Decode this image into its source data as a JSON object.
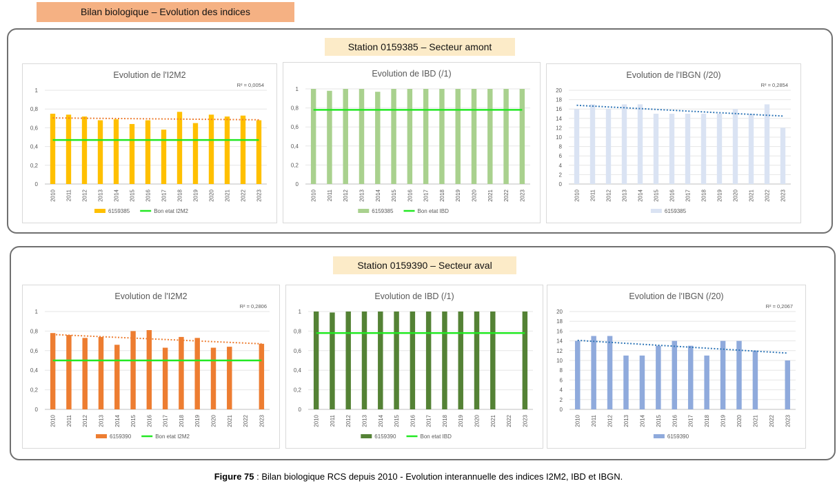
{
  "header": {
    "title": "Bilan biologique – Evolution des indices"
  },
  "stations": [
    {
      "label": "Station 0159385 – Secteur amont"
    },
    {
      "label": "Station 0159390 – Secteur aval"
    }
  ],
  "caption": {
    "prefix": "Figure 75",
    "text": " : Bilan biologique RCS depuis 2010 - Evolution interannuelle des indices I2M2, IBD et IBGN."
  },
  "colors": {
    "green_line": "#22e822",
    "i2m2_amont": "#ffc000",
    "ibd_amont": "#a9d18e",
    "ibgn_amont": "#dae3f3",
    "i2m2_aval": "#ed7d31",
    "ibd_aval": "#548235",
    "ibgn_aval": "#8faadc"
  },
  "chart_data": [
    {
      "type": "bar",
      "title": "Evolution de l'I2M2",
      "r2": "R² = 0,0054",
      "categories": [
        "2010",
        "2011",
        "2012",
        "2013",
        "2014",
        "2015",
        "2016",
        "2017",
        "2018",
        "2019",
        "2020",
        "2021",
        "2022",
        "2023"
      ],
      "ylim": [
        0,
        1
      ],
      "yticks": [
        "0",
        "0,2",
        "0,4",
        "0,6",
        "0,8",
        "1"
      ],
      "ytick_values": [
        0,
        0.2,
        0.4,
        0.6,
        0.8,
        1
      ],
      "series": [
        {
          "name": "6159385",
          "values": [
            0.75,
            0.74,
            0.72,
            0.68,
            0.69,
            0.64,
            0.68,
            0.58,
            0.77,
            0.65,
            0.74,
            0.72,
            0.73,
            0.68
          ],
          "color": "#ffc000"
        }
      ],
      "reference": {
        "name": "Bon etat I2M2",
        "value": 0.47,
        "color": "#22e822"
      },
      "trend": {
        "from": 0.705,
        "to": 0.685,
        "color": "#ed7d31"
      }
    },
    {
      "type": "bar",
      "title": "Evolution de IBD (/1)",
      "r2": "",
      "categories": [
        "2010",
        "2011",
        "2012",
        "2013",
        "2014",
        "2015",
        "2016",
        "2017",
        "2018",
        "2019",
        "2020",
        "2021",
        "2022",
        "2023"
      ],
      "ylim": [
        0,
        1
      ],
      "yticks": [
        "0",
        "0,2",
        "0,4",
        "0,6",
        "0,8",
        "1"
      ],
      "ytick_values": [
        0,
        0.2,
        0.4,
        0.6,
        0.8,
        1
      ],
      "series": [
        {
          "name": "6159385",
          "values": [
            1,
            0.98,
            1,
            1,
            0.97,
            1,
            1,
            1,
            1,
            1,
            1,
            1,
            1,
            1
          ],
          "color": "#a9d18e"
        }
      ],
      "reference": {
        "name": "Bon etat IBD",
        "value": 0.78,
        "color": "#22e822"
      },
      "trend": null
    },
    {
      "type": "bar",
      "title": "Evolution de l'IBGN (/20)",
      "r2": "R² = 0,2854",
      "categories": [
        "2010",
        "2011",
        "2012",
        "2013",
        "2014",
        "2015",
        "2016",
        "2017",
        "2018",
        "2019",
        "2020",
        "2021",
        "2022",
        "2023"
      ],
      "ylim": [
        0,
        20
      ],
      "yticks": [
        "0",
        "2",
        "4",
        "6",
        "8",
        "10",
        "12",
        "14",
        "16",
        "18",
        "20"
      ],
      "ytick_values": [
        0,
        2,
        4,
        6,
        8,
        10,
        12,
        14,
        16,
        18,
        20
      ],
      "series": [
        {
          "name": "6159385",
          "values": [
            16,
            17,
            16,
            17,
            17,
            15,
            15,
            15,
            15,
            15,
            16,
            15,
            17,
            12
          ],
          "color": "#dae3f3"
        }
      ],
      "reference": null,
      "trend": {
        "from": 16.8,
        "to": 14.5,
        "color": "#2e75b6"
      }
    },
    {
      "type": "bar",
      "title": "Evolution de l'I2M2",
      "r2": "R² = 0,2806",
      "categories": [
        "2010",
        "2011",
        "2012",
        "2013",
        "2014",
        "2015",
        "2016",
        "2017",
        "2018",
        "2019",
        "2020",
        "2021",
        "2022",
        "2023"
      ],
      "ylim": [
        0,
        1
      ],
      "yticks": [
        "0",
        "0,2",
        "0,4",
        "0,6",
        "0,8",
        "1"
      ],
      "ytick_values": [
        0,
        0.2,
        0.4,
        0.6,
        0.8,
        1
      ],
      "series": [
        {
          "name": "6159390",
          "values": [
            0.78,
            0.76,
            0.73,
            0.74,
            0.66,
            0.8,
            0.81,
            0.63,
            0.74,
            0.73,
            0.63,
            0.64,
            null,
            0.67
          ],
          "color": "#ed7d31"
        }
      ],
      "reference": {
        "name": "Bon etat I2M2",
        "value": 0.5,
        "color": "#22e822"
      },
      "trend": {
        "from": 0.765,
        "to": 0.67,
        "color": "#ed7d31"
      }
    },
    {
      "type": "bar",
      "title": "Evolution de IBD (/1)",
      "r2": "",
      "categories": [
        "2010",
        "2011",
        "2012",
        "2013",
        "2014",
        "2015",
        "2016",
        "2017",
        "2018",
        "2019",
        "2020",
        "2021",
        "2022",
        "2023"
      ],
      "ylim": [
        0,
        1
      ],
      "yticks": [
        "0",
        "0,2",
        "0,4",
        "0,6",
        "0,8",
        "1"
      ],
      "ytick_values": [
        0,
        0.2,
        0.4,
        0.6,
        0.8,
        1
      ],
      "series": [
        {
          "name": "6159390",
          "values": [
            1,
            0.99,
            1,
            1,
            1,
            1,
            1,
            1,
            1,
            1,
            1,
            1,
            null,
            1
          ],
          "color": "#548235"
        }
      ],
      "reference": {
        "name": "Bon etat IBD",
        "value": 0.78,
        "color": "#22e822"
      },
      "trend": null
    },
    {
      "type": "bar",
      "title": "Evolution de l'IBGN (/20)",
      "r2": "R² = 0,2067",
      "categories": [
        "2010",
        "2011",
        "2012",
        "2013",
        "2014",
        "2015",
        "2016",
        "2017",
        "2018",
        "2019",
        "2020",
        "2021",
        "2022",
        "2023"
      ],
      "ylim": [
        0,
        20
      ],
      "yticks": [
        "0",
        "2",
        "4",
        "6",
        "8",
        "10",
        "12",
        "14",
        "16",
        "18",
        "20"
      ],
      "ytick_values": [
        0,
        2,
        4,
        6,
        8,
        10,
        12,
        14,
        16,
        18,
        20
      ],
      "series": [
        {
          "name": "6159390",
          "values": [
            14,
            15,
            15,
            11,
            11,
            13,
            14,
            13,
            11,
            14,
            14,
            12,
            null,
            10
          ],
          "color": "#8faadc"
        }
      ],
      "reference": null,
      "trend": {
        "from": 14.1,
        "to": 11.5,
        "color": "#2e75b6"
      }
    }
  ]
}
